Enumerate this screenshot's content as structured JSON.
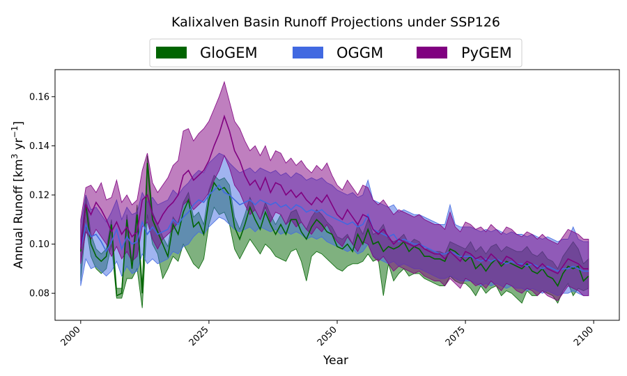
{
  "chart_data": {
    "type": "area",
    "title": "Kalixalven Basin Runoff Projections under SSP126",
    "xlabel": "Year",
    "ylabel_main": "Annual Runoff [km",
    "ylabel_sup1": "3",
    "ylabel_mid": " yr",
    "ylabel_sup2": "−1",
    "ylabel_end": "]",
    "xlim": [
      1995,
      2105
    ],
    "ylim": [
      0.069,
      0.171
    ],
    "xticks": [
      2000,
      2025,
      2050,
      2075,
      2100
    ],
    "yticks": [
      0.08,
      0.1,
      0.12,
      0.14,
      0.16
    ],
    "ytick_labels": [
      "0.08",
      "0.10",
      "0.12",
      "0.14",
      "0.16"
    ],
    "legend_position": "top-center",
    "x": [
      2000,
      2001,
      2002,
      2003,
      2004,
      2005,
      2006,
      2007,
      2008,
      2009,
      2010,
      2011,
      2012,
      2013,
      2014,
      2015,
      2016,
      2017,
      2018,
      2019,
      2020,
      2021,
      2022,
      2023,
      2024,
      2025,
      2026,
      2027,
      2028,
      2029,
      2030,
      2031,
      2032,
      2033,
      2034,
      2035,
      2036,
      2037,
      2038,
      2039,
      2040,
      2041,
      2042,
      2043,
      2044,
      2045,
      2046,
      2047,
      2048,
      2049,
      2050,
      2051,
      2052,
      2053,
      2054,
      2055,
      2056,
      2057,
      2058,
      2059,
      2060,
      2061,
      2062,
      2063,
      2064,
      2065,
      2066,
      2067,
      2068,
      2069,
      2070,
      2071,
      2072,
      2073,
      2074,
      2075,
      2076,
      2077,
      2078,
      2079,
      2080,
      2081,
      2082,
      2083,
      2084,
      2085,
      2086,
      2087,
      2088,
      2089,
      2090,
      2091,
      2092,
      2093,
      2094,
      2095,
      2096,
      2097,
      2098,
      2099
    ],
    "series": [
      {
        "name": "GloGEM",
        "color": "#006400",
        "mean": [
          0.097,
          0.116,
          0.1,
          0.095,
          0.093,
          0.095,
          0.108,
          0.079,
          0.08,
          0.11,
          0.09,
          0.112,
          0.08,
          0.133,
          0.11,
          0.105,
          0.1,
          0.095,
          0.108,
          0.104,
          0.113,
          0.118,
          0.107,
          0.109,
          0.104,
          0.118,
          0.125,
          0.122,
          0.123,
          0.12,
          0.107,
          0.102,
          0.108,
          0.115,
          0.11,
          0.106,
          0.113,
          0.108,
          0.104,
          0.108,
          0.104,
          0.11,
          0.11,
          0.105,
          0.102,
          0.107,
          0.11,
          0.108,
          0.105,
          0.104,
          0.099,
          0.098,
          0.1,
          0.097,
          0.104,
          0.1,
          0.106,
          0.1,
          0.101,
          0.097,
          0.099,
          0.098,
          0.099,
          0.101,
          0.097,
          0.099,
          0.098,
          0.095,
          0.095,
          0.094,
          0.094,
          0.093,
          0.098,
          0.097,
          0.095,
          0.093,
          0.095,
          0.09,
          0.092,
          0.089,
          0.092,
          0.094,
          0.091,
          0.093,
          0.092,
          0.091,
          0.09,
          0.092,
          0.089,
          0.088,
          0.09,
          0.087,
          0.086,
          0.083,
          0.088,
          0.091,
          0.09,
          0.091,
          0.085,
          0.087
        ],
        "upper": [
          0.1,
          0.12,
          0.104,
          0.098,
          0.096,
          0.098,
          0.11,
          0.082,
          0.082,
          0.112,
          0.093,
          0.116,
          0.083,
          0.136,
          0.113,
          0.108,
          0.103,
          0.099,
          0.111,
          0.108,
          0.117,
          0.121,
          0.111,
          0.113,
          0.108,
          0.122,
          0.128,
          0.126,
          0.127,
          0.124,
          0.111,
          0.106,
          0.112,
          0.119,
          0.114,
          0.11,
          0.117,
          0.112,
          0.108,
          0.112,
          0.108,
          0.113,
          0.114,
          0.109,
          0.106,
          0.111,
          0.114,
          0.112,
          0.109,
          0.107,
          0.103,
          0.102,
          0.104,
          0.1,
          0.108,
          0.104,
          0.11,
          0.104,
          0.105,
          0.108,
          0.102,
          0.101,
          0.102,
          0.104,
          0.1,
          0.102,
          0.101,
          0.098,
          0.098,
          0.097,
          0.097,
          0.096,
          0.101,
          0.1,
          0.099,
          0.098,
          0.101,
          0.097,
          0.099,
          0.096,
          0.099,
          0.1,
          0.097,
          0.099,
          0.098,
          0.097,
          0.097,
          0.099,
          0.096,
          0.095,
          0.097,
          0.094,
          0.093,
          0.09,
          0.095,
          0.098,
          0.101,
          0.098,
          0.092,
          0.094
        ],
        "lower": [
          0.085,
          0.108,
          0.095,
          0.09,
          0.088,
          0.09,
          0.1,
          0.078,
          0.078,
          0.086,
          0.086,
          0.09,
          0.074,
          0.112,
          0.1,
          0.096,
          0.086,
          0.09,
          0.095,
          0.093,
          0.1,
          0.096,
          0.092,
          0.09,
          0.094,
          0.108,
          0.115,
          0.112,
          0.113,
          0.108,
          0.098,
          0.094,
          0.098,
          0.102,
          0.099,
          0.096,
          0.1,
          0.098,
          0.095,
          0.094,
          0.093,
          0.097,
          0.098,
          0.093,
          0.085,
          0.095,
          0.097,
          0.096,
          0.094,
          0.092,
          0.09,
          0.089,
          0.091,
          0.092,
          0.092,
          0.093,
          0.096,
          0.093,
          0.094,
          0.079,
          0.092,
          0.085,
          0.088,
          0.09,
          0.087,
          0.088,
          0.088,
          0.086,
          0.085,
          0.084,
          0.083,
          0.083,
          0.087,
          0.085,
          0.084,
          0.084,
          0.082,
          0.079,
          0.083,
          0.08,
          0.082,
          0.083,
          0.079,
          0.081,
          0.08,
          0.078,
          0.076,
          0.081,
          0.079,
          0.079,
          0.081,
          0.08,
          0.079,
          0.076,
          0.081,
          0.084,
          0.079,
          0.082,
          0.081,
          0.082
        ]
      },
      {
        "name": "OGGM",
        "color": "#4169e1",
        "mean": [
          0.098,
          0.108,
          0.103,
          0.104,
          0.101,
          0.097,
          0.101,
          0.106,
          0.098,
          0.103,
          0.1,
          0.101,
          0.109,
          0.104,
          0.107,
          0.104,
          0.105,
          0.106,
          0.11,
          0.108,
          0.111,
          0.113,
          0.116,
          0.118,
          0.117,
          0.12,
          0.122,
          0.124,
          0.121,
          0.12,
          0.118,
          0.116,
          0.117,
          0.118,
          0.116,
          0.118,
          0.117,
          0.116,
          0.117,
          0.115,
          0.116,
          0.114,
          0.116,
          0.115,
          0.113,
          0.114,
          0.113,
          0.114,
          0.112,
          0.111,
          0.11,
          0.109,
          0.108,
          0.109,
          0.107,
          0.108,
          0.112,
          0.106,
          0.105,
          0.104,
          0.103,
          0.104,
          0.101,
          0.102,
          0.101,
          0.1,
          0.1,
          0.099,
          0.098,
          0.097,
          0.096,
          0.096,
          0.097,
          0.096,
          0.095,
          0.095,
          0.095,
          0.094,
          0.093,
          0.094,
          0.093,
          0.094,
          0.093,
          0.092,
          0.093,
          0.092,
          0.092,
          0.091,
          0.092,
          0.091,
          0.09,
          0.091,
          0.09,
          0.089,
          0.09,
          0.09,
          0.091,
          0.09,
          0.089,
          0.089
        ],
        "upper": [
          0.108,
          0.12,
          0.114,
          0.115,
          0.112,
          0.109,
          0.113,
          0.118,
          0.11,
          0.115,
          0.112,
          0.113,
          0.121,
          0.117,
          0.119,
          0.116,
          0.117,
          0.118,
          0.122,
          0.12,
          0.123,
          0.125,
          0.128,
          0.13,
          0.129,
          0.133,
          0.135,
          0.137,
          0.136,
          0.133,
          0.131,
          0.129,
          0.13,
          0.131,
          0.129,
          0.131,
          0.13,
          0.129,
          0.13,
          0.128,
          0.129,
          0.127,
          0.129,
          0.128,
          0.126,
          0.127,
          0.126,
          0.127,
          0.125,
          0.124,
          0.122,
          0.121,
          0.12,
          0.121,
          0.119,
          0.12,
          0.126,
          0.118,
          0.117,
          0.116,
          0.115,
          0.116,
          0.113,
          0.114,
          0.113,
          0.112,
          0.112,
          0.111,
          0.11,
          0.109,
          0.108,
          0.108,
          0.116,
          0.108,
          0.107,
          0.107,
          0.107,
          0.106,
          0.105,
          0.106,
          0.105,
          0.106,
          0.105,
          0.104,
          0.105,
          0.104,
          0.104,
          0.103,
          0.104,
          0.103,
          0.102,
          0.103,
          0.102,
          0.101,
          0.102,
          0.102,
          0.107,
          0.102,
          0.101,
          0.101
        ],
        "lower": [
          0.083,
          0.094,
          0.09,
          0.091,
          0.089,
          0.087,
          0.089,
          0.093,
          0.087,
          0.091,
          0.088,
          0.089,
          0.096,
          0.092,
          0.094,
          0.092,
          0.093,
          0.094,
          0.097,
          0.096,
          0.099,
          0.1,
          0.103,
          0.105,
          0.104,
          0.107,
          0.109,
          0.111,
          0.11,
          0.108,
          0.106,
          0.105,
          0.106,
          0.107,
          0.105,
          0.107,
          0.106,
          0.105,
          0.106,
          0.104,
          0.105,
          0.104,
          0.105,
          0.104,
          0.102,
          0.103,
          0.102,
          0.103,
          0.101,
          0.1,
          0.099,
          0.098,
          0.097,
          0.098,
          0.096,
          0.097,
          0.1,
          0.095,
          0.094,
          0.093,
          0.092,
          0.093,
          0.091,
          0.092,
          0.091,
          0.09,
          0.09,
          0.089,
          0.088,
          0.087,
          0.086,
          0.086,
          0.087,
          0.086,
          0.085,
          0.085,
          0.085,
          0.084,
          0.083,
          0.084,
          0.083,
          0.084,
          0.083,
          0.082,
          0.083,
          0.082,
          0.082,
          0.081,
          0.082,
          0.081,
          0.08,
          0.081,
          0.08,
          0.079,
          0.08,
          0.08,
          0.081,
          0.08,
          0.079,
          0.079
        ]
      },
      {
        "name": "PyGEM",
        "color": "#800080",
        "mean": [
          0.098,
          0.116,
          0.112,
          0.117,
          0.114,
          0.11,
          0.105,
          0.109,
          0.104,
          0.107,
          0.103,
          0.105,
          0.118,
          0.12,
          0.112,
          0.108,
          0.112,
          0.115,
          0.117,
          0.12,
          0.128,
          0.13,
          0.126,
          0.128,
          0.13,
          0.134,
          0.14,
          0.145,
          0.152,
          0.146,
          0.138,
          0.134,
          0.128,
          0.124,
          0.126,
          0.122,
          0.127,
          0.121,
          0.125,
          0.124,
          0.12,
          0.122,
          0.119,
          0.121,
          0.118,
          0.116,
          0.119,
          0.117,
          0.12,
          0.116,
          0.112,
          0.11,
          0.114,
          0.111,
          0.108,
          0.112,
          0.111,
          0.106,
          0.104,
          0.106,
          0.103,
          0.1,
          0.102,
          0.101,
          0.1,
          0.099,
          0.1,
          0.098,
          0.097,
          0.096,
          0.096,
          0.094,
          0.097,
          0.095,
          0.093,
          0.097,
          0.096,
          0.094,
          0.095,
          0.093,
          0.096,
          0.094,
          0.092,
          0.095,
          0.094,
          0.092,
          0.091,
          0.093,
          0.092,
          0.09,
          0.092,
          0.09,
          0.089,
          0.088,
          0.091,
          0.094,
          0.093,
          0.092,
          0.09,
          0.09
        ],
        "upper": [
          0.11,
          0.123,
          0.124,
          0.121,
          0.125,
          0.118,
          0.119,
          0.126,
          0.117,
          0.12,
          0.116,
          0.118,
          0.13,
          0.137,
          0.125,
          0.121,
          0.124,
          0.127,
          0.132,
          0.134,
          0.146,
          0.147,
          0.142,
          0.145,
          0.147,
          0.15,
          0.155,
          0.16,
          0.166,
          0.158,
          0.15,
          0.147,
          0.142,
          0.138,
          0.14,
          0.136,
          0.14,
          0.134,
          0.138,
          0.137,
          0.133,
          0.135,
          0.132,
          0.134,
          0.131,
          0.129,
          0.132,
          0.13,
          0.133,
          0.128,
          0.124,
          0.122,
          0.126,
          0.123,
          0.12,
          0.124,
          0.123,
          0.118,
          0.116,
          0.118,
          0.115,
          0.112,
          0.114,
          0.113,
          0.112,
          0.111,
          0.112,
          0.11,
          0.109,
          0.108,
          0.108,
          0.106,
          0.113,
          0.107,
          0.105,
          0.109,
          0.108,
          0.106,
          0.107,
          0.105,
          0.108,
          0.106,
          0.104,
          0.107,
          0.106,
          0.104,
          0.103,
          0.105,
          0.104,
          0.102,
          0.104,
          0.102,
          0.101,
          0.1,
          0.103,
          0.106,
          0.105,
          0.104,
          0.102,
          0.102
        ],
        "lower": [
          0.092,
          0.105,
          0.102,
          0.106,
          0.103,
          0.1,
          0.095,
          0.099,
          0.094,
          0.097,
          0.093,
          0.095,
          0.107,
          0.109,
          0.102,
          0.098,
          0.102,
          0.104,
          0.106,
          0.109,
          0.116,
          0.118,
          0.114,
          0.116,
          0.118,
          0.121,
          0.126,
          0.13,
          0.136,
          0.131,
          0.124,
          0.121,
          0.116,
          0.112,
          0.114,
          0.11,
          0.115,
          0.109,
          0.113,
          0.112,
          0.108,
          0.11,
          0.107,
          0.109,
          0.106,
          0.104,
          0.107,
          0.105,
          0.108,
          0.104,
          0.101,
          0.099,
          0.103,
          0.1,
          0.097,
          0.101,
          0.1,
          0.095,
          0.093,
          0.095,
          0.092,
          0.089,
          0.091,
          0.09,
          0.089,
          0.088,
          0.089,
          0.087,
          0.086,
          0.085,
          0.085,
          0.083,
          0.086,
          0.084,
          0.082,
          0.086,
          0.085,
          0.083,
          0.084,
          0.082,
          0.085,
          0.083,
          0.081,
          0.084,
          0.083,
          0.081,
          0.08,
          0.082,
          0.081,
          0.079,
          0.081,
          0.079,
          0.078,
          0.077,
          0.08,
          0.083,
          0.082,
          0.081,
          0.079,
          0.079
        ]
      }
    ]
  }
}
